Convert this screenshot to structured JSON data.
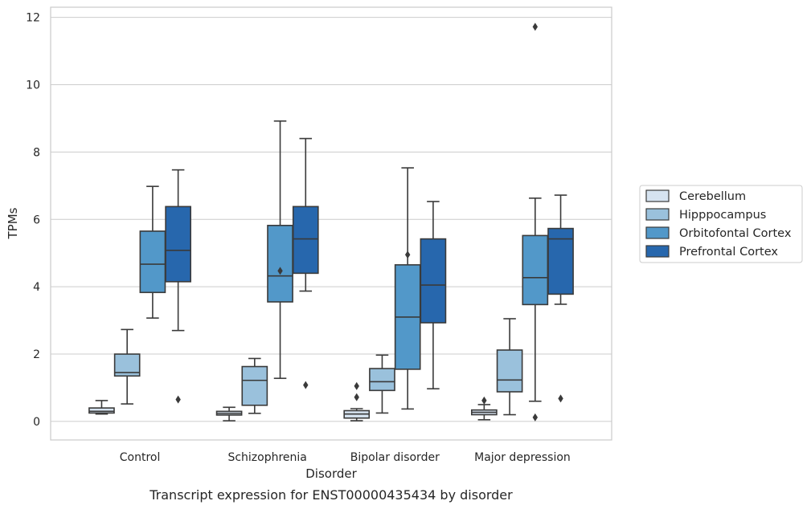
{
  "chart_data": {
    "type": "box",
    "caption": "Transcript expression for ENST00000435434 by disorder",
    "xlabel": "Disorder",
    "ylabel": "TPMs",
    "ylim": [
      -0.55,
      12.3
    ],
    "yticks": [
      0,
      2,
      4,
      6,
      8,
      10,
      12
    ],
    "grid": "horizontal",
    "legend_position": "right",
    "categories": [
      "Control",
      "Schizophrenia",
      "Bipolar disorder",
      "Major depression"
    ],
    "series": [
      {
        "name": "Cerebellum",
        "color": "#d6e3f0",
        "boxes": [
          {
            "whisker_low": 0.22,
            "q1": 0.25,
            "median": 0.3,
            "q3": 0.4,
            "whisker_high": 0.62,
            "outliers": []
          },
          {
            "whisker_low": 0.02,
            "q1": 0.19,
            "median": 0.24,
            "q3": 0.3,
            "whisker_high": 0.42,
            "outliers": []
          },
          {
            "whisker_low": 0.02,
            "q1": 0.1,
            "median": 0.22,
            "q3": 0.32,
            "whisker_high": 0.38,
            "outliers": [
              0.72,
              1.05
            ]
          },
          {
            "whisker_low": 0.05,
            "q1": 0.2,
            "median": 0.27,
            "q3": 0.34,
            "whisker_high": 0.5,
            "outliers": [
              0.62
            ]
          }
        ]
      },
      {
        "name": "Hipppocampus",
        "color": "#9ac1dc",
        "boxes": [
          {
            "whisker_low": 0.52,
            "q1": 1.35,
            "median": 1.45,
            "q3": 2.0,
            "whisker_high": 2.73,
            "outliers": []
          },
          {
            "whisker_low": 0.24,
            "q1": 0.48,
            "median": 1.22,
            "q3": 1.63,
            "whisker_high": 1.87,
            "outliers": []
          },
          {
            "whisker_low": 0.25,
            "q1": 0.92,
            "median": 1.18,
            "q3": 1.57,
            "whisker_high": 1.97,
            "outliers": []
          },
          {
            "whisker_low": 0.2,
            "q1": 0.88,
            "median": 1.23,
            "q3": 2.12,
            "whisker_high": 3.05,
            "outliers": []
          }
        ]
      },
      {
        "name": "Orbitofontal Cortex",
        "color": "#5298c9",
        "boxes": [
          {
            "whisker_low": 3.07,
            "q1": 3.83,
            "median": 4.67,
            "q3": 5.65,
            "whisker_high": 6.98,
            "outliers": []
          },
          {
            "whisker_low": 1.28,
            "q1": 3.55,
            "median": 4.32,
            "q3": 5.82,
            "whisker_high": 8.92,
            "outliers": [
              4.47
            ]
          },
          {
            "whisker_low": 0.37,
            "q1": 1.55,
            "median": 3.1,
            "q3": 4.65,
            "whisker_high": 7.53,
            "outliers": [
              4.95
            ]
          },
          {
            "whisker_low": 0.6,
            "q1": 3.47,
            "median": 4.27,
            "q3": 5.52,
            "whisker_high": 6.63,
            "outliers": [
              0.12,
              11.72
            ]
          }
        ]
      },
      {
        "name": "Prefrontal Cortex",
        "color": "#2767ad",
        "boxes": [
          {
            "whisker_low": 2.7,
            "q1": 4.15,
            "median": 5.08,
            "q3": 6.38,
            "whisker_high": 7.47,
            "outliers": [
              0.65
            ]
          },
          {
            "whisker_low": 3.87,
            "q1": 4.4,
            "median": 5.42,
            "q3": 6.38,
            "whisker_high": 8.4,
            "outliers": [
              1.08
            ]
          },
          {
            "whisker_low": 0.97,
            "q1": 2.93,
            "median": 4.05,
            "q3": 5.42,
            "whisker_high": 6.53,
            "outliers": []
          },
          {
            "whisker_low": 3.48,
            "q1": 3.78,
            "median": 5.42,
            "q3": 5.73,
            "whisker_high": 6.72,
            "outliers": [
              0.68
            ]
          }
        ]
      }
    ]
  }
}
